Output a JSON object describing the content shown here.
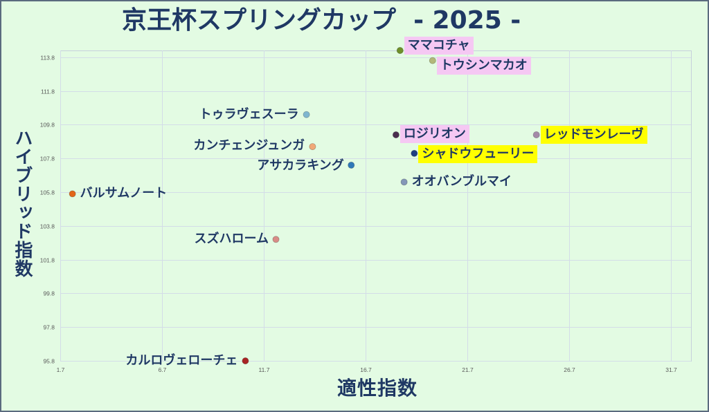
{
  "colors": {
    "background": "#e3fbe3",
    "text": "#1f3864",
    "grid": "#d3dce8",
    "plot_border": "#c6d0dc",
    "highlight_pink": "#f5c8f3",
    "highlight_yellow": "#ffff00"
  },
  "chart_data": {
    "type": "scatter",
    "title": "京王杯スプリングカップ  - 2025 -",
    "xlabel": "適性指数",
    "ylabel": "ハイブリッド指数",
    "xlim": [
      1.7,
      32.7
    ],
    "ylim": [
      95.8,
      114.2
    ],
    "xticks": [
      "1.7",
      "6.7",
      "11.7",
      "16.7",
      "21.7",
      "26.7",
      "31.7"
    ],
    "yticks": [
      "95.8",
      "97.8",
      "99.8",
      "101.8",
      "103.8",
      "105.8",
      "107.8",
      "109.8",
      "111.8",
      "113.8"
    ],
    "grid": true,
    "points": [
      {
        "name": "ママコチャ",
        "x": 18.4,
        "y": 114.2,
        "color": "#6f8f2a",
        "highlight": "#f5c8f3",
        "label_side": "right"
      },
      {
        "name": "トウシンマカオ",
        "x": 20.0,
        "y": 113.6,
        "color": "#b3b87a",
        "highlight": "#f5c8f3",
        "label_side": "right"
      },
      {
        "name": "トゥラヴェスーラ",
        "x": 13.8,
        "y": 110.4,
        "color": "#7fb6cf",
        "highlight": null,
        "label_side": "left"
      },
      {
        "name": "ロジリオン",
        "x": 18.2,
        "y": 109.2,
        "color": "#4a2e4e",
        "highlight": "#f5c8f3",
        "label_side": "right"
      },
      {
        "name": "レッドモンレーヴ",
        "x": 25.1,
        "y": 109.2,
        "color": "#a48aa8",
        "highlight": "#ffff00",
        "label_side": "right"
      },
      {
        "name": "カンチェンジュンガ",
        "x": 14.1,
        "y": 108.5,
        "color": "#f0a878",
        "highlight": null,
        "label_side": "left"
      },
      {
        "name": "シャドウフューリー",
        "x": 19.1,
        "y": 108.1,
        "color": "#213f82",
        "highlight": "#ffff00",
        "label_side": "right"
      },
      {
        "name": "アサカラキング",
        "x": 16.0,
        "y": 107.4,
        "color": "#2f78b8",
        "highlight": null,
        "label_side": "left"
      },
      {
        "name": "オオバンブルマイ",
        "x": 18.6,
        "y": 106.4,
        "color": "#8497b8",
        "highlight": null,
        "label_side": "right"
      },
      {
        "name": "バルサムノート",
        "x": 2.3,
        "y": 105.7,
        "color": "#e2661a",
        "highlight": null,
        "label_side": "right"
      },
      {
        "name": "スズハローム",
        "x": 12.3,
        "y": 103.0,
        "color": "#d88c86",
        "highlight": null,
        "label_side": "left"
      },
      {
        "name": "カルロヴェローチェ",
        "x": 10.8,
        "y": 95.8,
        "color": "#a82424",
        "highlight": null,
        "label_side": "left"
      }
    ]
  }
}
